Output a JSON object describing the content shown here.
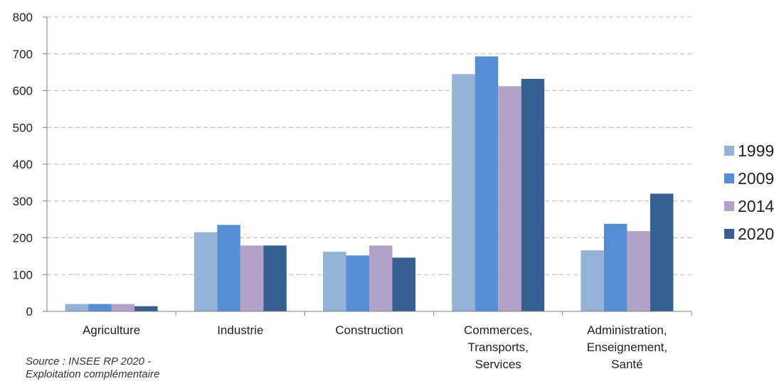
{
  "chart_data": {
    "type": "bar",
    "categories": [
      [
        "Agriculture"
      ],
      [
        "Industrie"
      ],
      [
        "Construction"
      ],
      [
        "Commerces,",
        "Transports,",
        "Services"
      ],
      [
        "Administration,",
        "Enseignement,",
        "Santé"
      ]
    ],
    "series": [
      {
        "name": "1999",
        "color": "#95b3d7",
        "values": [
          20,
          215,
          162,
          645,
          166
        ]
      },
      {
        "name": "2009",
        "color": "#558ed5",
        "values": [
          20,
          235,
          152,
          693,
          238
        ]
      },
      {
        "name": "2014",
        "color": "#b3a2c7",
        "values": [
          20,
          179,
          179,
          612,
          218
        ]
      },
      {
        "name": "2020",
        "color": "#376092",
        "values": [
          14,
          179,
          146,
          632,
          320
        ]
      }
    ],
    "ylim": [
      0,
      800
    ],
    "yticks": [
      0,
      100,
      200,
      300,
      400,
      500,
      600,
      700,
      800
    ],
    "grid": true,
    "legend_position": "right"
  },
  "source": {
    "line1": "Source : INSEE RP 2020 -",
    "line2": "Exploitation complémentaire"
  }
}
